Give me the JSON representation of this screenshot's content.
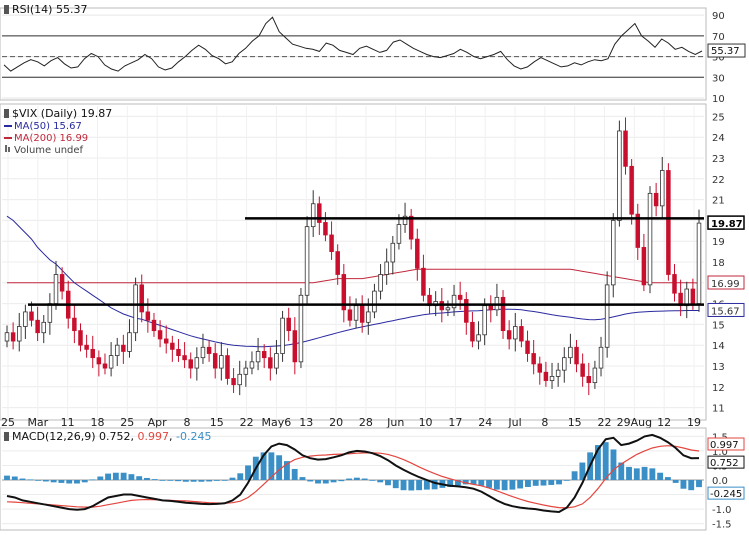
{
  "chart_data": [
    {
      "type": "line",
      "title": "RSI(14) 55.37",
      "ylim": [
        10,
        95
      ],
      "y_ticks": [
        90,
        70,
        50,
        30,
        10
      ],
      "guide_lines": [
        70,
        30
      ],
      "last_value_label": "55.37",
      "series": [
        {
          "name": "RSI(14)",
          "color": "#222222",
          "values": [
            42,
            36,
            40,
            44,
            47,
            45,
            41,
            46,
            49,
            43,
            39,
            40,
            48,
            53,
            50,
            42,
            38,
            36,
            41,
            44,
            47,
            52,
            48,
            40,
            37,
            39,
            45,
            50,
            56,
            61,
            57,
            51,
            48,
            43,
            45,
            53,
            58,
            65,
            70,
            82,
            88,
            74,
            68,
            62,
            60,
            58,
            57,
            55,
            63,
            61,
            56,
            54,
            52,
            58,
            60,
            57,
            54,
            56,
            64,
            66,
            62,
            58,
            55,
            52,
            50,
            49,
            51,
            53,
            57,
            54,
            50,
            48,
            50,
            52,
            55,
            47,
            41,
            38,
            40,
            45,
            49,
            46,
            43,
            40,
            41,
            44,
            42,
            45,
            47,
            46,
            48,
            62,
            70,
            76,
            82,
            70,
            65,
            59,
            67,
            63,
            57,
            59,
            55,
            52,
            55.37
          ]
        }
      ]
    },
    {
      "type": "candlestick",
      "title": "$VIX (Daily) 19.87",
      "ylim": [
        10.5,
        25.5
      ],
      "y_ticks": [
        25,
        24,
        23,
        22,
        21,
        20,
        19,
        18,
        17,
        16,
        15,
        14,
        13,
        12,
        11
      ],
      "x_tick_labels": [
        "25",
        "Mar",
        "11",
        "18",
        "25",
        "Apr",
        "8",
        "15",
        "22",
        "May6",
        "13",
        "20",
        "28",
        "Jun",
        "10",
        "17",
        "24",
        "Jul",
        "8",
        "15",
        "22",
        "29Aug",
        "12",
        "19"
      ],
      "horizontal_lines": [
        20.1,
        15.95
      ],
      "price_labels": [
        "19.87",
        "16.99",
        "15.67"
      ],
      "legend": [
        {
          "label": "MA(50) 15.67",
          "color": "#2a2aa0"
        },
        {
          "label": "MA(200) 16.99",
          "color": "#c0283c"
        },
        {
          "label": "Volume undef",
          "color": "#666666"
        }
      ],
      "close": [
        14.6,
        14.2,
        14.9,
        15.6,
        15.2,
        14.6,
        15.1,
        16.0,
        17.4,
        16.6,
        15.3,
        14.7,
        14.0,
        13.8,
        13.4,
        13.1,
        12.9,
        13.5,
        14.0,
        13.7,
        14.6,
        16.9,
        15.6,
        15.2,
        14.7,
        14.3,
        14.1,
        13.8,
        13.5,
        13.3,
        12.9,
        13.4,
        13.9,
        13.6,
        12.9,
        13.5,
        12.4,
        12.1,
        12.6,
        12.9,
        13.2,
        13.7,
        13.4,
        12.9,
        13.6,
        15.3,
        14.7,
        13.2,
        16.4,
        19.7,
        20.8,
        19.9,
        19.3,
        18.5,
        17.4,
        15.7,
        15.2,
        15.9,
        15.1,
        15.6,
        16.6,
        17.4,
        18.0,
        18.9,
        19.8,
        20.2,
        19.1,
        17.7,
        16.4,
        15.9,
        16.1,
        15.7,
        15.8,
        16.4,
        16.2,
        15.1,
        14.2,
        14.5,
        15.9,
        15.7,
        16.3,
        14.7,
        14.3,
        14.9,
        14.2,
        13.6,
        13.1,
        12.7,
        12.3,
        12.5,
        12.8,
        13.4,
        13.9,
        13.1,
        12.5,
        12.2,
        12.9,
        13.9,
        16.9,
        20.0,
        24.3,
        22.6,
        20.3,
        18.7,
        16.9,
        21.3,
        20.7,
        22.4,
        17.4,
        16.5,
        15.9,
        16.7,
        16.0,
        19.87
      ],
      "ma50": [
        20.2,
        20.0,
        19.7,
        19.4,
        19.1,
        18.7,
        18.4,
        18.1,
        17.9,
        17.6,
        17.3,
        17.0,
        16.8,
        16.6,
        16.4,
        16.2,
        16.0,
        15.8,
        15.65,
        15.5,
        15.4,
        15.3,
        15.25,
        15.15,
        15.05,
        14.95,
        14.85,
        14.75,
        14.65,
        14.55,
        14.45,
        14.37,
        14.3,
        14.23,
        14.16,
        14.1,
        14.04,
        14.0,
        13.97,
        13.95,
        13.94,
        13.93,
        13.93,
        13.94,
        13.96,
        13.98,
        14.02,
        14.07,
        14.13,
        14.2,
        14.28,
        14.36,
        14.44,
        14.52,
        14.6,
        14.68,
        14.75,
        14.82,
        14.88,
        14.94,
        15.0,
        15.06,
        15.12,
        15.18,
        15.24,
        15.3,
        15.36,
        15.41,
        15.46,
        15.5,
        15.53,
        15.55,
        15.57,
        15.6,
        15.62,
        15.64,
        15.65,
        15.66,
        15.68,
        15.7,
        15.72,
        15.73,
        15.73,
        15.72,
        15.7,
        15.66,
        15.62,
        15.57,
        15.52,
        15.46,
        15.42,
        15.38,
        15.34,
        15.3,
        15.26,
        15.23,
        15.22,
        15.25,
        15.3,
        15.36,
        15.43,
        15.5,
        15.55,
        15.58,
        15.6,
        15.62,
        15.63,
        15.64,
        15.65,
        15.66,
        15.66,
        15.67,
        15.67,
        15.67
      ],
      "ma200": [
        17.0,
        17.0,
        17.0,
        17.0,
        17.0,
        17.0,
        17.0,
        17.0,
        17.0,
        17.0,
        17.0,
        17.0,
        17.0,
        17.0,
        17.0,
        17.0,
        17.0,
        17.0,
        17.0,
        17.0,
        17.0,
        17.0,
        17.0,
        17.0,
        17.0,
        17.0,
        17.0,
        17.0,
        17.0,
        17.0,
        17.0,
        17.0,
        17.0,
        17.0,
        17.0,
        17.0,
        17.0,
        17.0,
        17.0,
        17.0,
        17.0,
        17.0,
        17.0,
        17.0,
        17.0,
        17.0,
        17.0,
        17.0,
        17.0,
        17.0,
        17.0,
        17.05,
        17.1,
        17.15,
        17.2,
        17.2,
        17.2,
        17.2,
        17.2,
        17.25,
        17.3,
        17.35,
        17.4,
        17.45,
        17.5,
        17.55,
        17.6,
        17.65,
        17.65,
        17.65,
        17.65,
        17.65,
        17.65,
        17.65,
        17.65,
        17.65,
        17.65,
        17.65,
        17.65,
        17.65,
        17.65,
        17.65,
        17.65,
        17.65,
        17.65,
        17.65,
        17.65,
        17.65,
        17.65,
        17.65,
        17.65,
        17.65,
        17.65,
        17.6,
        17.55,
        17.5,
        17.45,
        17.4,
        17.35,
        17.3,
        17.25,
        17.2,
        17.15,
        17.1,
        17.05,
        17.0,
        17.0,
        17.0,
        17.0,
        17.0,
        17.0,
        17.0,
        17.0,
        16.99
      ]
    },
    {
      "type": "line",
      "title": "MACD(12,26,9) 0.752, 0.997, -0.245",
      "ylim": [
        -1.65,
        1.65
      ],
      "y_ticks": [
        1.5,
        1.0,
        0.5,
        0.0,
        -0.5,
        -1.0,
        -1.5
      ],
      "value_labels": [
        "0.752",
        "0.997",
        "-0.245"
      ],
      "series": [
        {
          "name": "MACD",
          "color": "#111111",
          "values": [
            -0.55,
            -0.6,
            -0.7,
            -0.75,
            -0.8,
            -0.85,
            -0.9,
            -0.95,
            -1.0,
            -1.02,
            -1.0,
            -0.9,
            -0.75,
            -0.6,
            -0.55,
            -0.5,
            -0.5,
            -0.55,
            -0.6,
            -0.65,
            -0.7,
            -0.72,
            -0.75,
            -0.78,
            -0.8,
            -0.82,
            -0.83,
            -0.82,
            -0.8,
            -0.7,
            -0.5,
            -0.1,
            0.4,
            0.85,
            1.15,
            1.25,
            1.2,
            1.05,
            0.85,
            0.75,
            0.7,
            0.72,
            0.78,
            0.85,
            0.95,
            1.0,
            0.98,
            0.92,
            0.82,
            0.68,
            0.5,
            0.35,
            0.22,
            0.1,
            0.0,
            -0.1,
            -0.15,
            -0.2,
            -0.22,
            -0.25,
            -0.3,
            -0.4,
            -0.55,
            -0.7,
            -0.82,
            -0.9,
            -0.95,
            -0.98,
            -1.0,
            -1.05,
            -1.08,
            -1.1,
            -0.95,
            -0.6,
            -0.1,
            0.5,
            1.05,
            1.4,
            1.45,
            1.2,
            1.25,
            1.35,
            1.5,
            1.55,
            1.45,
            1.3,
            1.1,
            0.85,
            0.75,
            0.752
          ]
        },
        {
          "name": "Signal",
          "color": "#e3463f",
          "values": [
            -0.75,
            -0.76,
            -0.78,
            -0.8,
            -0.82,
            -0.84,
            -0.86,
            -0.88,
            -0.9,
            -0.92,
            -0.93,
            -0.93,
            -0.9,
            -0.85,
            -0.8,
            -0.75,
            -0.7,
            -0.68,
            -0.67,
            -0.68,
            -0.69,
            -0.7,
            -0.71,
            -0.72,
            -0.74,
            -0.76,
            -0.78,
            -0.79,
            -0.8,
            -0.78,
            -0.73,
            -0.6,
            -0.4,
            -0.15,
            0.1,
            0.35,
            0.55,
            0.7,
            0.78,
            0.82,
            0.85,
            0.86,
            0.88,
            0.89,
            0.9,
            0.92,
            0.93,
            0.93,
            0.92,
            0.88,
            0.8,
            0.7,
            0.58,
            0.45,
            0.33,
            0.22,
            0.12,
            0.04,
            -0.03,
            -0.1,
            -0.15,
            -0.2,
            -0.28,
            -0.37,
            -0.47,
            -0.57,
            -0.66,
            -0.74,
            -0.8,
            -0.86,
            -0.91,
            -0.95,
            -0.96,
            -0.92,
            -0.82,
            -0.6,
            -0.3,
            0.05,
            0.35,
            0.55,
            0.72,
            0.88,
            1.0,
            1.1,
            1.16,
            1.18,
            1.16,
            1.1,
            1.03,
            0.997
          ]
        },
        {
          "name": "Histogram",
          "color": "#3a8fc7",
          "values": [
            0.15,
            0.12,
            0.05,
            0.02,
            -0.02,
            -0.05,
            -0.08,
            -0.1,
            -0.12,
            -0.12,
            -0.08,
            0.02,
            0.12,
            0.22,
            0.25,
            0.25,
            0.2,
            0.13,
            0.07,
            0.03,
            -0.01,
            -0.02,
            -0.04,
            -0.06,
            -0.06,
            -0.06,
            -0.05,
            -0.03,
            0.0,
            0.08,
            0.23,
            0.5,
            0.8,
            0.95,
            0.95,
            0.85,
            0.65,
            0.38,
            0.1,
            -0.05,
            -0.12,
            -0.12,
            -0.08,
            -0.04,
            0.05,
            0.08,
            0.05,
            0.0,
            -0.08,
            -0.18,
            -0.28,
            -0.35,
            -0.36,
            -0.35,
            -0.33,
            -0.32,
            -0.27,
            -0.24,
            -0.19,
            -0.15,
            -0.15,
            -0.2,
            -0.27,
            -0.33,
            -0.35,
            -0.33,
            -0.29,
            -0.24,
            -0.2,
            -0.19,
            -0.17,
            -0.15,
            0.0,
            0.3,
            0.6,
            0.95,
            1.2,
            1.3,
            1.05,
            0.6,
            0.45,
            0.4,
            0.45,
            0.4,
            0.25,
            0.1,
            -0.1,
            -0.3,
            -0.35,
            -0.245
          ]
        }
      ]
    }
  ]
}
